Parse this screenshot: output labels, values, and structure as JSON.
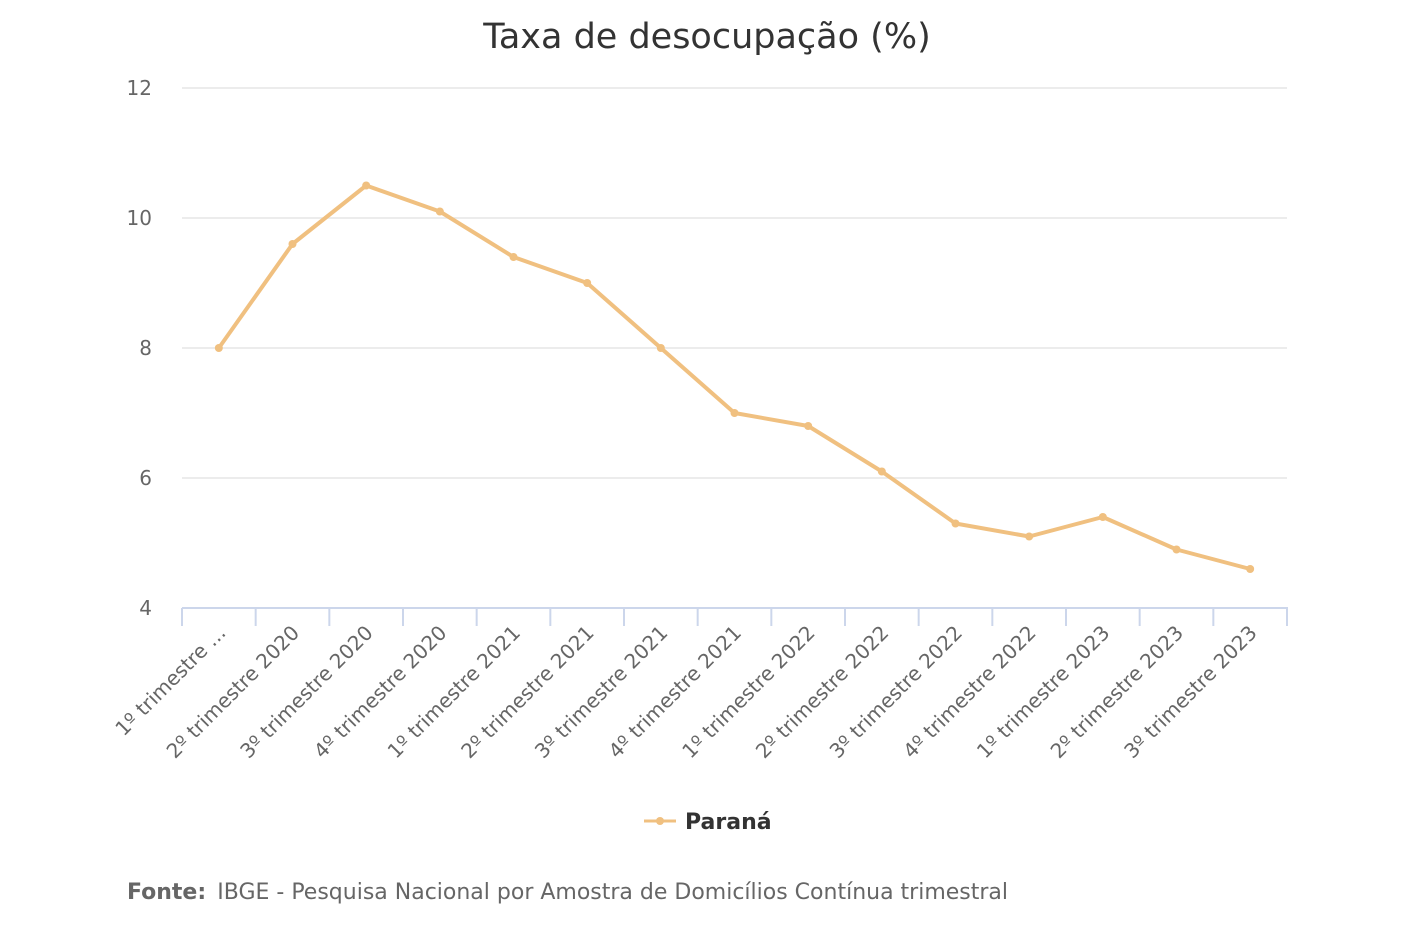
{
  "chart_data": {
    "type": "line",
    "title": "Taxa de desocupação (%)",
    "categories": [
      "1º trimestre ...",
      "2º trimestre 2020",
      "3º trimestre 2020",
      "4º trimestre 2020",
      "1º trimestre 2021",
      "2º trimestre 2021",
      "3º trimestre 2021",
      "4º trimestre 2021",
      "1º trimestre 2022",
      "2º trimestre 2022",
      "3º trimestre 2022",
      "4º trimestre 2022",
      "1º trimestre 2023",
      "2º trimestre 2023",
      "3º trimestre 2023"
    ],
    "series": [
      {
        "name": "Paraná",
        "color": "#f0c080",
        "values": [
          8.0,
          9.6,
          10.5,
          10.1,
          9.4,
          9.0,
          8.0,
          7.0,
          6.8,
          6.1,
          5.3,
          5.1,
          5.4,
          4.9,
          4.6
        ]
      }
    ],
    "ylim": [
      4,
      12
    ],
    "yticks": [
      "4",
      "6",
      "8",
      "10",
      "12"
    ],
    "xlabel": "",
    "ylabel": "",
    "grid": true,
    "legend_position": "bottom-center"
  },
  "source": {
    "label": "Fonte:",
    "text": "IBGE - Pesquisa Nacional por Amostra de Domicílios Contínua trimestral"
  },
  "colors": {
    "grid": "#e6e6e6",
    "axis": "#ccd6eb",
    "line": "#f0c080"
  }
}
